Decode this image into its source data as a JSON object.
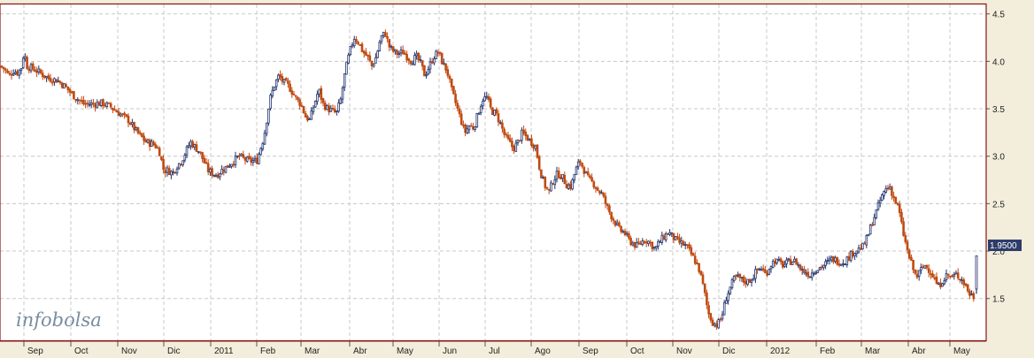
{
  "watermark": "infobolsa",
  "colors": {
    "up": "#22336e",
    "down": "#c04a10",
    "frame": "#8a1414",
    "grid": "#c8c8c8",
    "last_bg": "#2e3c6a"
  },
  "last_price_label": "1.9500",
  "chart_data": {
    "type": "candlestick",
    "title": "",
    "xlabel": "",
    "ylabel": "",
    "grid": true,
    "ylim": [
      1.05,
      4.6
    ],
    "y_ticks": [
      "1.5",
      "2.0",
      "2.5",
      "3.0",
      "3.5",
      "4.0",
      "4.5"
    ],
    "x_ticks": [
      "Sep",
      "Oct",
      "Nov",
      "Dic",
      "2011",
      "Feb",
      "Mar",
      "Abr",
      "May",
      "Jun",
      "Jul",
      "Ago",
      "Sep",
      "Oct",
      "Nov",
      "Dic",
      "2012",
      "Feb",
      "Mar",
      "Abr",
      "May"
    ],
    "last_value": 1.95,
    "close_path": [
      [
        0,
        3.95
      ],
      [
        5,
        3.92
      ],
      [
        10,
        3.85
      ],
      [
        15,
        3.9
      ],
      [
        20,
        3.88
      ],
      [
        25,
        3.95
      ],
      [
        27,
        4.12
      ],
      [
        30,
        3.95
      ],
      [
        38,
        3.92
      ],
      [
        45,
        3.88
      ],
      [
        55,
        3.82
      ],
      [
        65,
        3.8
      ],
      [
        75,
        3.72
      ],
      [
        85,
        3.62
      ],
      [
        95,
        3.55
      ],
      [
        105,
        3.55
      ],
      [
        115,
        3.56
      ],
      [
        125,
        3.52
      ],
      [
        135,
        3.45
      ],
      [
        145,
        3.38
      ],
      [
        155,
        3.25
      ],
      [
        165,
        3.15
      ],
      [
        175,
        3.12
      ],
      [
        180,
        3.05
      ],
      [
        185,
        2.85
      ],
      [
        190,
        2.85
      ],
      [
        195,
        2.82
      ],
      [
        200,
        2.9
      ],
      [
        205,
        2.95
      ],
      [
        210,
        3.05
      ],
      [
        215,
        3.15
      ],
      [
        220,
        3.1
      ],
      [
        225,
        3.05
      ],
      [
        230,
        2.95
      ],
      [
        235,
        2.85
      ],
      [
        240,
        2.82
      ],
      [
        245,
        2.8
      ],
      [
        250,
        2.85
      ],
      [
        255,
        2.88
      ],
      [
        260,
        2.92
      ],
      [
        270,
        3.0
      ],
      [
        280,
        2.95
      ],
      [
        290,
        2.95
      ],
      [
        298,
        3.2
      ],
      [
        305,
        3.6
      ],
      [
        310,
        3.75
      ],
      [
        315,
        3.85
      ],
      [
        320,
        3.78
      ],
      [
        325,
        3.75
      ],
      [
        330,
        3.68
      ],
      [
        335,
        3.6
      ],
      [
        340,
        3.55
      ],
      [
        345,
        3.42
      ],
      [
        350,
        3.38
      ],
      [
        355,
        3.55
      ],
      [
        360,
        3.7
      ],
      [
        365,
        3.55
      ],
      [
        370,
        3.5
      ],
      [
        375,
        3.48
      ],
      [
        380,
        3.45
      ],
      [
        385,
        3.6
      ],
      [
        390,
        3.9
      ],
      [
        395,
        4.1
      ],
      [
        400,
        4.25
      ],
      [
        405,
        4.2
      ],
      [
        410,
        4.1
      ],
      [
        415,
        4.05
      ],
      [
        420,
        3.95
      ],
      [
        425,
        4.05
      ],
      [
        430,
        4.25
      ],
      [
        435,
        4.3
      ],
      [
        440,
        4.15
      ],
      [
        445,
        4.1
      ],
      [
        450,
        4.08
      ],
      [
        455,
        4.1
      ],
      [
        460,
        4.05
      ],
      [
        465,
        4.0
      ],
      [
        470,
        4.05
      ],
      [
        475,
        3.98
      ],
      [
        480,
        3.85
      ],
      [
        485,
        3.95
      ],
      [
        490,
        4.05
      ],
      [
        495,
        4.1
      ],
      [
        500,
        3.98
      ],
      [
        505,
        3.9
      ],
      [
        510,
        3.7
      ],
      [
        515,
        3.55
      ],
      [
        520,
        3.4
      ],
      [
        525,
        3.25
      ],
      [
        530,
        3.32
      ],
      [
        535,
        3.3
      ],
      [
        540,
        3.45
      ],
      [
        545,
        3.6
      ],
      [
        550,
        3.62
      ],
      [
        555,
        3.48
      ],
      [
        560,
        3.45
      ],
      [
        565,
        3.35
      ],
      [
        570,
        3.22
      ],
      [
        575,
        3.15
      ],
      [
        580,
        3.08
      ],
      [
        585,
        3.15
      ],
      [
        590,
        3.25
      ],
      [
        595,
        3.2
      ],
      [
        600,
        3.15
      ],
      [
        605,
        3.1
      ],
      [
        610,
        2.85
      ],
      [
        615,
        2.7
      ],
      [
        620,
        2.62
      ],
      [
        625,
        2.75
      ],
      [
        630,
        2.82
      ],
      [
        635,
        2.78
      ],
      [
        640,
        2.7
      ],
      [
        645,
        2.68
      ],
      [
        650,
        2.85
      ],
      [
        655,
        2.95
      ],
      [
        660,
        2.85
      ],
      [
        665,
        2.75
      ],
      [
        670,
        2.72
      ],
      [
        675,
        2.65
      ],
      [
        680,
        2.6
      ],
      [
        685,
        2.48
      ],
      [
        690,
        2.38
      ],
      [
        695,
        2.3
      ],
      [
        700,
        2.22
      ],
      [
        705,
        2.2
      ],
      [
        710,
        2.12
      ],
      [
        715,
        2.08
      ],
      [
        720,
        2.05
      ],
      [
        725,
        2.1
      ],
      [
        730,
        2.12
      ],
      [
        735,
        2.08
      ],
      [
        740,
        2.02
      ],
      [
        745,
        2.1
      ],
      [
        750,
        2.15
      ],
      [
        755,
        2.2
      ],
      [
        760,
        2.15
      ],
      [
        765,
        2.1
      ],
      [
        770,
        2.08
      ],
      [
        775,
        2.05
      ],
      [
        780,
        1.98
      ],
      [
        785,
        1.9
      ],
      [
        790,
        1.8
      ],
      [
        795,
        1.6
      ],
      [
        800,
        1.35
      ],
      [
        805,
        1.25
      ],
      [
        810,
        1.22
      ],
      [
        815,
        1.3
      ],
      [
        820,
        1.5
      ],
      [
        825,
        1.62
      ],
      [
        830,
        1.72
      ],
      [
        835,
        1.72
      ],
      [
        840,
        1.68
      ],
      [
        845,
        1.68
      ],
      [
        850,
        1.72
      ],
      [
        855,
        1.8
      ],
      [
        860,
        1.82
      ],
      [
        865,
        1.75
      ],
      [
        870,
        1.85
      ],
      [
        875,
        1.9
      ],
      [
        880,
        1.88
      ],
      [
        885,
        1.85
      ],
      [
        890,
        1.88
      ],
      [
        895,
        1.9
      ],
      [
        900,
        1.88
      ],
      [
        905,
        1.8
      ],
      [
        910,
        1.78
      ],
      [
        915,
        1.75
      ],
      [
        920,
        1.8
      ],
      [
        925,
        1.82
      ],
      [
        930,
        1.85
      ],
      [
        935,
        1.88
      ],
      [
        940,
        1.92
      ],
      [
        945,
        1.9
      ],
      [
        950,
        1.88
      ],
      [
        955,
        1.9
      ],
      [
        960,
        1.95
      ],
      [
        965,
        2.0
      ],
      [
        970,
        2.02
      ],
      [
        975,
        2.05
      ],
      [
        980,
        2.15
      ],
      [
        985,
        2.3
      ],
      [
        990,
        2.42
      ],
      [
        995,
        2.55
      ],
      [
        1000,
        2.65
      ],
      [
        1005,
        2.68
      ],
      [
        1010,
        2.55
      ],
      [
        1015,
        2.45
      ],
      [
        1020,
        2.2
      ],
      [
        1025,
        2.0
      ],
      [
        1030,
        1.85
      ],
      [
        1035,
        1.72
      ],
      [
        1040,
        1.8
      ],
      [
        1045,
        1.85
      ],
      [
        1050,
        1.8
      ],
      [
        1055,
        1.72
      ],
      [
        1060,
        1.62
      ],
      [
        1065,
        1.7
      ],
      [
        1070,
        1.75
      ],
      [
        1075,
        1.72
      ],
      [
        1080,
        1.75
      ],
      [
        1085,
        1.72
      ],
      [
        1090,
        1.65
      ],
      [
        1095,
        1.55
      ],
      [
        1100,
        1.52
      ],
      [
        1103,
        1.95
      ]
    ],
    "volatility": 0.035
  }
}
